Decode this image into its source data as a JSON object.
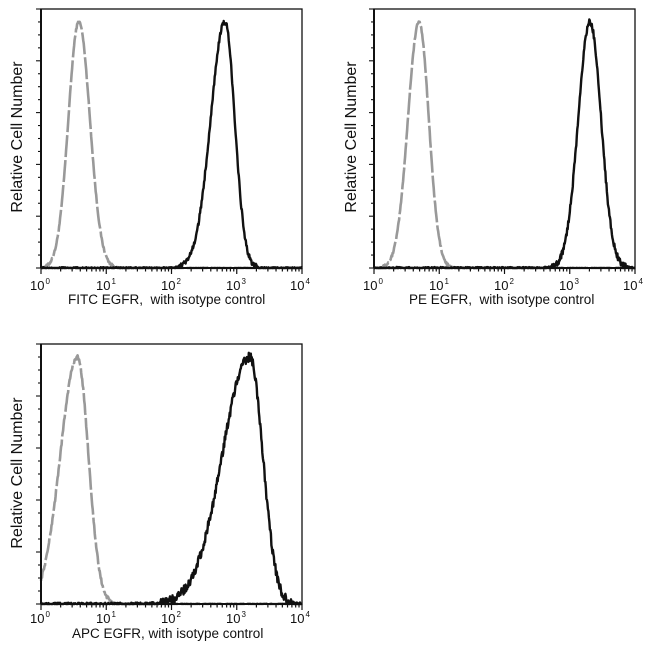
{
  "colors": {
    "sample": "#111111",
    "isotype": "#999999",
    "frame": "#111111",
    "background": "#ffffff"
  },
  "chart_data": [
    {
      "type": "line",
      "subtype": "flow-cytometry-histogram",
      "title": "",
      "xlabel": "FITC EGFR,  with isotype control",
      "ylabel": "Relative Cell Number",
      "xscale": "log",
      "xlim": [
        1,
        10000
      ],
      "x_tick_labels": [
        "10^0",
        "10^1",
        "10^2",
        "10^3",
        "10^4"
      ],
      "ylim": [
        0,
        1
      ],
      "y_tick_labels": [],
      "grid": false,
      "legend": null,
      "series": [
        {
          "name": "Isotype control",
          "style": "dashed",
          "color": "#999999",
          "peak_x": 3.8,
          "peak_y": 0.95,
          "log_sigma_left": 0.16,
          "log_sigma_right": 0.17,
          "noise": 0.01
        },
        {
          "name": "FITC EGFR",
          "style": "solid",
          "color": "#111111",
          "peak_x": 660,
          "peak_y": 0.95,
          "log_sigma_left": 0.22,
          "log_sigma_right": 0.15,
          "noise": 0.02
        }
      ]
    },
    {
      "type": "line",
      "subtype": "flow-cytometry-histogram",
      "title": "",
      "xlabel": "PE EGFR,  with isotype control",
      "ylabel": "Relative Cell Number",
      "xscale": "log",
      "xlim": [
        1,
        10000
      ],
      "x_tick_labels": [
        "10^0",
        "10^1",
        "10^2",
        "10^3",
        "10^4"
      ],
      "ylim": [
        0,
        1
      ],
      "y_tick_labels": [],
      "grid": false,
      "legend": null,
      "series": [
        {
          "name": "Isotype control",
          "style": "dashed",
          "color": "#999999",
          "peak_x": 4.9,
          "peak_y": 0.95,
          "log_sigma_left": 0.17,
          "log_sigma_right": 0.15,
          "noise": 0.01
        },
        {
          "name": "PE EGFR",
          "style": "solid",
          "color": "#111111",
          "peak_x": 2040,
          "peak_y": 0.95,
          "log_sigma_left": 0.18,
          "log_sigma_right": 0.17,
          "noise": 0.025
        }
      ]
    },
    {
      "type": "line",
      "subtype": "flow-cytometry-histogram",
      "title": "",
      "xlabel": "APC EGFR, with isotype control",
      "ylabel": "Relative Cell Number",
      "xscale": "log",
      "xlim": [
        1,
        10000
      ],
      "x_tick_labels": [
        "10^0",
        "10^1",
        "10^2",
        "10^3",
        "10^4"
      ],
      "ylim": [
        0,
        1
      ],
      "y_tick_labels": [],
      "grid": false,
      "legend": null,
      "series": [
        {
          "name": "Isotype control",
          "style": "dashed",
          "color": "#999999",
          "peak_x": 3.6,
          "peak_y": 0.95,
          "log_sigma_left": 0.26,
          "log_sigma_right": 0.17,
          "noise": 0.015
        },
        {
          "name": "APC EGFR",
          "style": "solid",
          "color": "#111111",
          "peak_x": 1580,
          "peak_y": 0.95,
          "log_sigma_left": 0.42,
          "log_sigma_right": 0.2,
          "noise": 0.035
        }
      ]
    }
  ],
  "panels": [
    {
      "ylabel": "Relative Cell Number",
      "xlabel": "FITC EGFR,  with isotype control",
      "ticks": [
        {
          "base": "10",
          "exp": "0"
        },
        {
          "base": "10",
          "exp": "1"
        },
        {
          "base": "10",
          "exp": "2"
        },
        {
          "base": "10",
          "exp": "3"
        },
        {
          "base": "10",
          "exp": "4"
        }
      ]
    },
    {
      "ylabel": "Relative Cell Number",
      "xlabel": "PE EGFR,  with isotype control",
      "ticks": [
        {
          "base": "10",
          "exp": "0"
        },
        {
          "base": "10",
          "exp": "1"
        },
        {
          "base": "10",
          "exp": "2"
        },
        {
          "base": "10",
          "exp": "3"
        },
        {
          "base": "10",
          "exp": "4"
        }
      ]
    },
    {
      "ylabel": "Relative Cell Number",
      "xlabel": "APC EGFR, with isotype control",
      "ticks": [
        {
          "base": "10",
          "exp": "0"
        },
        {
          "base": "10",
          "exp": "1"
        },
        {
          "base": "10",
          "exp": "2"
        },
        {
          "base": "10",
          "exp": "3"
        },
        {
          "base": "10",
          "exp": "4"
        }
      ]
    }
  ]
}
